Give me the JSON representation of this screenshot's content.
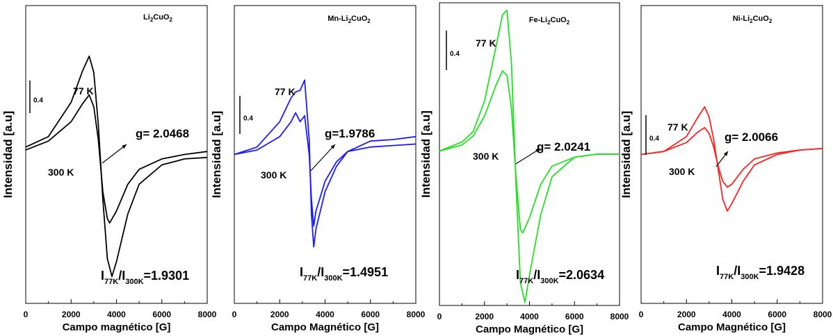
{
  "chart_data": [
    {
      "type": "line",
      "title": "Li2CuO2",
      "title_parts": {
        "pre": "Li",
        "sub1": "2",
        "mid": "CuO",
        "sub2": "2"
      },
      "xlabel": "Campo magnético [G]",
      "ylabel": "Intensidad [a.u]",
      "xlim": [
        0,
        8000
      ],
      "ylim": [
        -1.0,
        1.0
      ],
      "xticks": [
        0,
        2000,
        4000,
        6000,
        8000
      ],
      "color": "#000000",
      "scale_bar_label": "0.4",
      "g_label": "g= 2.0468",
      "ratio": {
        "I": "I",
        "sub_77": "77K",
        "slash": "/I",
        "sub_300": "300K",
        "value": "=1.9301"
      },
      "series": [
        {
          "name": "77 K",
          "x": [
            0,
            1000,
            2000,
            2500,
            2800,
            3000,
            3200,
            3400,
            3600,
            3800,
            4000,
            4500,
            5000,
            6000,
            7000,
            8000
          ],
          "y": [
            0.05,
            0.12,
            0.35,
            0.56,
            0.66,
            0.55,
            0.2,
            -0.3,
            -0.7,
            -0.82,
            -0.72,
            -0.4,
            -0.2,
            -0.07,
            -0.03,
            -0.02
          ]
        },
        {
          "name": "300 K",
          "x": [
            0,
            1000,
            2000,
            2500,
            2800,
            3000,
            3200,
            3400,
            3600,
            3700,
            4000,
            4500,
            5000,
            6000,
            7000,
            8000
          ],
          "y": [
            0.03,
            0.09,
            0.22,
            0.34,
            0.4,
            0.32,
            0.1,
            -0.25,
            -0.43,
            -0.46,
            -0.38,
            -0.2,
            -0.1,
            -0.03,
            0.0,
            0.02
          ]
        }
      ]
    },
    {
      "type": "line",
      "title": "Mn-Li2CuO2",
      "title_parts": {
        "pre": "Mn-Li",
        "sub1": "2",
        "mid": "CuO",
        "sub2": "2"
      },
      "xlabel": "Campo Magnético [G]",
      "ylabel": "Intensidad [a.u]",
      "xlim": [
        0,
        8000
      ],
      "ylim": [
        -1.0,
        1.0
      ],
      "xticks": [
        0,
        2000,
        4000,
        6000,
        8000
      ],
      "color": "#1a1aff",
      "scale_bar_label": "0.4",
      "g_label": "g=1.9786",
      "ratio": {
        "I": "I",
        "sub_77": "77K",
        "slash": "/I",
        "sub_300": "300K",
        "value": "=1.4951"
      },
      "series": [
        {
          "name": "77 K",
          "x": [
            0,
            1000,
            2000,
            2500,
            2700,
            2900,
            3100,
            3300,
            3400,
            3500,
            3600,
            4000,
            4500,
            5000,
            6000,
            7000,
            8000
          ],
          "y": [
            0.0,
            0.05,
            0.22,
            0.38,
            0.42,
            0.43,
            0.5,
            0.1,
            -0.4,
            -0.62,
            -0.5,
            -0.25,
            -0.08,
            0.02,
            0.09,
            0.1,
            0.12
          ]
        },
        {
          "name": "300 K",
          "x": [
            0,
            1000,
            2000,
            2500,
            2700,
            2900,
            3100,
            3300,
            3400,
            3500,
            3600,
            4000,
            4500,
            5000,
            6000,
            7000,
            8000
          ],
          "y": [
            0.0,
            0.03,
            0.12,
            0.22,
            0.28,
            0.22,
            0.26,
            0.0,
            -0.3,
            -0.48,
            -0.38,
            -0.18,
            -0.05,
            0.02,
            0.05,
            0.06,
            0.07
          ]
        }
      ]
    },
    {
      "type": "line",
      "title": "Fe-Li2CuO2",
      "title_parts": {
        "pre": "Fe-Li",
        "sub1": "2",
        "mid": "CuO",
        "sub2": "2"
      },
      "xlabel": "Campo Magnético [G]",
      "ylabel": "Intensidad [a.u]",
      "xlim": [
        0,
        8000
      ],
      "ylim": [
        -1.0,
        1.0
      ],
      "xticks": [
        0,
        2000,
        4000,
        6000,
        8000
      ],
      "color": "#22e022",
      "scale_bar_label": "0.4",
      "g_label": "g= 2.0241",
      "ratio": {
        "I": "I",
        "sub_77": "77K",
        "slash": "/I",
        "sub_300": "300K",
        "value": "=2.0634"
      },
      "series": [
        {
          "name": "77 K",
          "x": [
            0,
            1000,
            1500,
            2000,
            2500,
            2800,
            3000,
            3200,
            3400,
            3600,
            3800,
            4000,
            4500,
            5000,
            6000,
            7000,
            8000
          ],
          "y": [
            0.02,
            0.08,
            0.15,
            0.35,
            0.7,
            0.92,
            0.95,
            0.6,
            -0.2,
            -0.85,
            -0.98,
            -0.8,
            -0.4,
            -0.15,
            -0.02,
            0.0,
            0.0
          ]
        },
        {
          "name": "300 K",
          "x": [
            0,
            1000,
            1500,
            2000,
            2500,
            2800,
            3000,
            3200,
            3400,
            3600,
            3700,
            4000,
            4500,
            5000,
            6000,
            7000,
            8000
          ],
          "y": [
            0.02,
            0.06,
            0.12,
            0.25,
            0.45,
            0.55,
            0.52,
            0.3,
            -0.15,
            -0.5,
            -0.52,
            -0.42,
            -0.2,
            -0.08,
            -0.02,
            0.0,
            0.0
          ]
        }
      ]
    },
    {
      "type": "line",
      "title": "Ni-Li2CuO2",
      "title_parts": {
        "pre": "Ni-Li",
        "sub1": "2",
        "mid": "CuO",
        "sub2": "2"
      },
      "xlabel": "Campo Magnético [G]",
      "ylabel": "Intensidad [a.u]",
      "xlim": [
        0,
        8000
      ],
      "ylim": [
        -1.0,
        1.0
      ],
      "xticks": [
        0,
        2000,
        4000,
        6000,
        8000
      ],
      "color": "#ff2020",
      "scale_bar_label": "0.4",
      "g_label": "g= 2.0066",
      "ratio": {
        "I": "I",
        "sub_77": "77K",
        "slash": "/I",
        "sub_300": "300K",
        "value": "=1.9428"
      },
      "series": [
        {
          "name": "77 K",
          "x": [
            0,
            1000,
            2000,
            2500,
            2800,
            3000,
            3200,
            3400,
            3600,
            3800,
            4000,
            4500,
            5000,
            6000,
            7000,
            8000
          ],
          "y": [
            0.0,
            0.02,
            0.12,
            0.25,
            0.32,
            0.25,
            0.1,
            -0.1,
            -0.3,
            -0.38,
            -0.33,
            -0.18,
            -0.07,
            0.0,
            0.03,
            0.04
          ]
        },
        {
          "name": "300 K",
          "x": [
            0,
            1000,
            2000,
            2500,
            2800,
            3000,
            3200,
            3400,
            3600,
            3800,
            4000,
            4500,
            5000,
            6000,
            7000,
            8000
          ],
          "y": [
            0.0,
            0.02,
            0.08,
            0.15,
            0.18,
            0.14,
            0.05,
            -0.08,
            -0.18,
            -0.22,
            -0.2,
            -0.1,
            -0.03,
            0.01,
            0.03,
            0.04
          ]
        }
      ]
    }
  ]
}
